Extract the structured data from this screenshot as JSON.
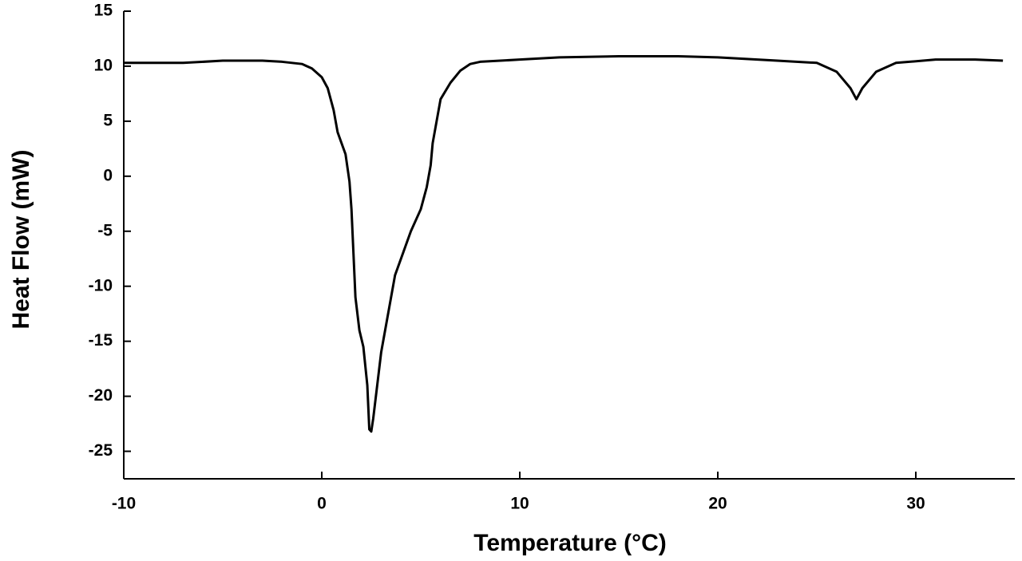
{
  "chart_data": {
    "type": "line",
    "xlabel": "Temperature (°C)",
    "ylabel": "Heat Flow (mW)",
    "xlim": [
      -10,
      35
    ],
    "ylim": [
      -27.5,
      15
    ],
    "xticks": [
      -10,
      0,
      10,
      20,
      30
    ],
    "yticks": [
      -25,
      -20,
      -15,
      -10,
      -5,
      0,
      5,
      10,
      15
    ],
    "series": [
      {
        "color": "#000000",
        "x": [
          -10,
          -7,
          -5,
          -3,
          -2,
          -1,
          -0.5,
          0,
          0.3,
          0.6,
          0.8,
          1.0,
          1.2,
          1.4,
          1.5,
          1.6,
          1.7,
          1.9,
          2.1,
          2.3,
          2.4,
          2.5,
          2.6,
          2.8,
          3.0,
          3.3,
          3.7,
          4.0,
          4.5,
          5.0,
          5.3,
          5.5,
          5.6,
          5.8,
          6.0,
          6.5,
          7.0,
          7.5,
          8,
          10,
          12,
          15,
          18,
          20,
          23,
          25,
          26,
          26.7,
          27,
          27.3,
          28,
          29,
          31,
          33,
          34.4
        ],
        "values": [
          10.3,
          10.3,
          10.5,
          10.5,
          10.4,
          10.2,
          9.8,
          9,
          8,
          6,
          4,
          3,
          2,
          -0.5,
          -3,
          -7,
          -11,
          -14,
          -15.5,
          -19,
          -23,
          -23.2,
          -22,
          -19,
          -16,
          -13,
          -9,
          -7.5,
          -5,
          -3,
          -1,
          1,
          3,
          5,
          7,
          8.5,
          9.6,
          10.2,
          10.4,
          10.6,
          10.8,
          10.9,
          10.9,
          10.8,
          10.5,
          10.3,
          9.5,
          8,
          7,
          8,
          9.5,
          10.3,
          10.6,
          10.6,
          10.5
        ]
      }
    ]
  }
}
